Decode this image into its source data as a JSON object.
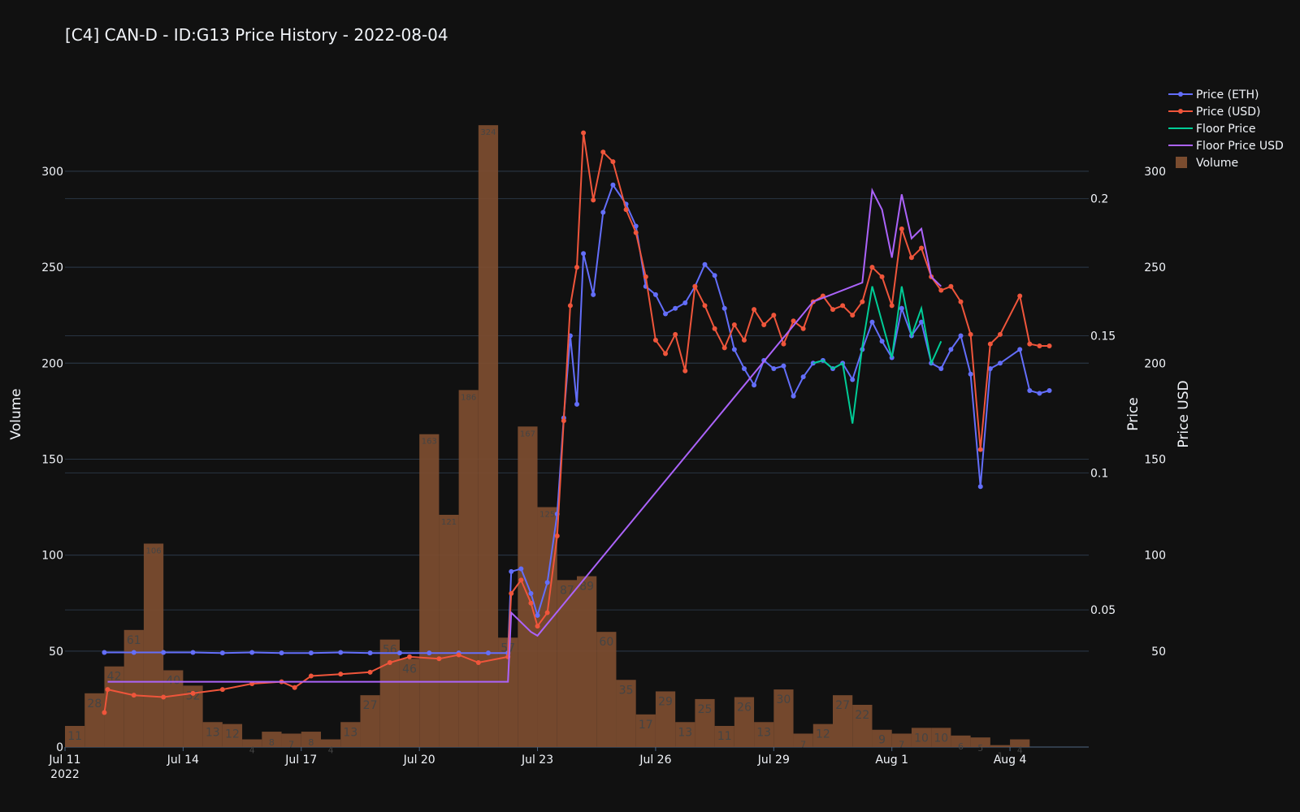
{
  "chart_data": {
    "type": "bar+line",
    "title": "[C4] CAN-D - ID:G13 Price History - 2022-08-04",
    "x_ticks": [
      {
        "date": "2022-07-11",
        "label": "Jul 11",
        "sublabel": "2022"
      },
      {
        "date": "2022-07-14",
        "label": "Jul 14"
      },
      {
        "date": "2022-07-17",
        "label": "Jul 17"
      },
      {
        "date": "2022-07-20",
        "label": "Jul 20"
      },
      {
        "date": "2022-07-23",
        "label": "Jul 23"
      },
      {
        "date": "2022-07-26",
        "label": "Jul 26"
      },
      {
        "date": "2022-07-29",
        "label": "Jul 29"
      },
      {
        "date": "2022-08-01",
        "label": "Aug 1"
      },
      {
        "date": "2022-08-04",
        "label": "Aug 4"
      }
    ],
    "x_range": [
      "2022-07-11",
      "2022-08-06"
    ],
    "axes": {
      "volume": {
        "title": "Volume",
        "range": [
          0,
          330
        ],
        "ticks": [
          0,
          50,
          100,
          150,
          200,
          250,
          300
        ]
      },
      "price": {
        "title": "Price",
        "range": [
          0,
          0.231
        ],
        "ticks": [
          0.05,
          0.1,
          0.15,
          0.2
        ]
      },
      "price_usd": {
        "title": "Price USD",
        "range": [
          0,
          330
        ],
        "ticks": [
          50,
          100,
          150,
          200,
          250,
          300
        ]
      }
    },
    "legend": {
      "position": "top-right",
      "items": [
        {
          "name": "Price (ETH)",
          "symbol": "line-marker",
          "color": "#636efa"
        },
        {
          "name": "Price (USD)",
          "symbol": "line-marker",
          "color": "#ef553b"
        },
        {
          "name": "Floor Price",
          "symbol": "line",
          "color": "#00cc96"
        },
        {
          "name": "Floor Price USD",
          "symbol": "line",
          "color": "#ab63fa"
        },
        {
          "name": "Volume",
          "symbol": "square",
          "color": "#7a4c2f"
        }
      ]
    },
    "volume": [
      {
        "date": "2022-07-11",
        "value": 11
      },
      {
        "date": "2022-07-12",
        "value": 28
      },
      {
        "date": "2022-07-12",
        "value": 42
      },
      {
        "date": "2022-07-13",
        "value": 61
      },
      {
        "date": "2022-07-13",
        "value": 106
      },
      {
        "date": "2022-07-14",
        "value": 40
      },
      {
        "date": "2022-07-14",
        "value": 32
      },
      {
        "date": "2022-07-15",
        "value": 13
      },
      {
        "date": "2022-07-15",
        "value": 12
      },
      {
        "date": "2022-07-16",
        "value": 4
      },
      {
        "date": "2022-07-16",
        "value": 8
      },
      {
        "date": "2022-07-17",
        "value": 7
      },
      {
        "date": "2022-07-17",
        "value": 8
      },
      {
        "date": "2022-07-18",
        "value": 4
      },
      {
        "date": "2022-07-18",
        "value": 13
      },
      {
        "date": "2022-07-19",
        "value": 27
      },
      {
        "date": "2022-07-19",
        "value": 56
      },
      {
        "date": "2022-07-20",
        "value": 46
      },
      {
        "date": "2022-07-20",
        "value": 163
      },
      {
        "date": "2022-07-21",
        "value": 121
      },
      {
        "date": "2022-07-21",
        "value": 186
      },
      {
        "date": "2022-07-22",
        "value": 324
      },
      {
        "date": "2022-07-22",
        "value": 57
      },
      {
        "date": "2022-07-23",
        "value": 167
      },
      {
        "date": "2022-07-23",
        "value": 125
      },
      {
        "date": "2022-07-24",
        "value": 87
      },
      {
        "date": "2022-07-24",
        "value": 89
      },
      {
        "date": "2022-07-25",
        "value": 60
      },
      {
        "date": "2022-07-25",
        "value": 35
      },
      {
        "date": "2022-07-26",
        "value": 17
      },
      {
        "date": "2022-07-26",
        "value": 29
      },
      {
        "date": "2022-07-27",
        "value": 13
      },
      {
        "date": "2022-07-27",
        "value": 25
      },
      {
        "date": "2022-07-28",
        "value": 11
      },
      {
        "date": "2022-07-28",
        "value": 26
      },
      {
        "date": "2022-07-29",
        "value": 13
      },
      {
        "date": "2022-07-29",
        "value": 30
      },
      {
        "date": "2022-07-30",
        "value": 7
      },
      {
        "date": "2022-07-30",
        "value": 12
      },
      {
        "date": "2022-07-31",
        "value": 27
      },
      {
        "date": "2022-07-31",
        "value": 22
      },
      {
        "date": "2022-08-01",
        "value": 9
      },
      {
        "date": "2022-08-01",
        "value": 7
      },
      {
        "date": "2022-08-02",
        "value": 10
      },
      {
        "date": "2022-08-02",
        "value": 10
      },
      {
        "date": "2022-08-03",
        "value": 6
      },
      {
        "date": "2022-08-03",
        "value": 5
      },
      {
        "date": "2022-08-04",
        "value": 1
      },
      {
        "date": "2022-08-04",
        "value": 4
      }
    ],
    "series": [
      {
        "name": "Price (ETH)",
        "axis": "price",
        "color": "#636efa",
        "markers": true,
        "points": [
          [
            "2022-07-12 00:00",
            0.0345
          ],
          [
            "2022-07-12 18:00",
            0.0345
          ],
          [
            "2022-07-13 12:00",
            0.0345
          ],
          [
            "2022-07-14 06:00",
            0.0345
          ],
          [
            "2022-07-15 00:00",
            0.0343
          ],
          [
            "2022-07-15 18:00",
            0.0345
          ],
          [
            "2022-07-16 12:00",
            0.0343
          ],
          [
            "2022-07-17 06:00",
            0.0343
          ],
          [
            "2022-07-18 00:00",
            0.0345
          ],
          [
            "2022-07-18 18:00",
            0.0343
          ],
          [
            "2022-07-19 12:00",
            0.0343
          ],
          [
            "2022-07-20 06:00",
            0.0343
          ],
          [
            "2022-07-21 00:00",
            0.0343
          ],
          [
            "2022-07-21 18:00",
            0.0343
          ],
          [
            "2022-07-22 06:00",
            0.0343
          ],
          [
            "2022-07-22 08:00",
            0.064
          ],
          [
            "2022-07-22 14:00",
            0.065
          ],
          [
            "2022-07-22 20:00",
            0.056
          ],
          [
            "2022-07-23 00:00",
            0.048
          ],
          [
            "2022-07-23 06:00",
            0.06
          ],
          [
            "2022-07-23 12:00",
            0.085
          ],
          [
            "2022-07-23 16:00",
            0.12
          ],
          [
            "2022-07-23 20:00",
            0.15
          ],
          [
            "2022-07-24 00:00",
            0.125
          ],
          [
            "2022-07-24 04:00",
            0.18
          ],
          [
            "2022-07-24 10:00",
            0.165
          ],
          [
            "2022-07-24 16:00",
            0.195
          ],
          [
            "2022-07-24 22:00",
            0.205
          ],
          [
            "2022-07-25 06:00",
            0.198
          ],
          [
            "2022-07-25 12:00",
            0.19
          ],
          [
            "2022-07-25 18:00",
            0.168
          ],
          [
            "2022-07-26 00:00",
            0.165
          ],
          [
            "2022-07-26 06:00",
            0.158
          ],
          [
            "2022-07-26 12:00",
            0.16
          ],
          [
            "2022-07-26 18:00",
            0.162
          ],
          [
            "2022-07-27 00:00",
            0.168
          ],
          [
            "2022-07-27 06:00",
            0.176
          ],
          [
            "2022-07-27 12:00",
            0.172
          ],
          [
            "2022-07-27 18:00",
            0.16
          ],
          [
            "2022-07-28 00:00",
            0.145
          ],
          [
            "2022-07-28 06:00",
            0.138
          ],
          [
            "2022-07-28 12:00",
            0.132
          ],
          [
            "2022-07-28 18:00",
            0.141
          ],
          [
            "2022-07-29 00:00",
            0.138
          ],
          [
            "2022-07-29 06:00",
            0.139
          ],
          [
            "2022-07-29 12:00",
            0.128
          ],
          [
            "2022-07-29 18:00",
            0.135
          ],
          [
            "2022-07-30 00:00",
            0.14
          ],
          [
            "2022-07-30 06:00",
            0.141
          ],
          [
            "2022-07-30 12:00",
            0.138
          ],
          [
            "2022-07-30 18:00",
            0.14
          ],
          [
            "2022-07-31 00:00",
            0.134
          ],
          [
            "2022-07-31 06:00",
            0.145
          ],
          [
            "2022-07-31 12:00",
            0.155
          ],
          [
            "2022-07-31 18:00",
            0.148
          ],
          [
            "2022-08-01 00:00",
            0.142
          ],
          [
            "2022-08-01 06:00",
            0.16
          ],
          [
            "2022-08-01 12:00",
            0.15
          ],
          [
            "2022-08-01 18:00",
            0.155
          ],
          [
            "2022-08-02 00:00",
            0.14
          ],
          [
            "2022-08-02 06:00",
            0.138
          ],
          [
            "2022-08-02 12:00",
            0.145
          ],
          [
            "2022-08-02 18:00",
            0.15
          ],
          [
            "2022-08-03 00:00",
            0.136
          ],
          [
            "2022-08-03 06:00",
            0.095
          ],
          [
            "2022-08-03 12:00",
            0.138
          ],
          [
            "2022-08-03 18:00",
            0.14
          ],
          [
            "2022-08-04 06:00",
            0.145
          ],
          [
            "2022-08-04 12:00",
            0.13
          ],
          [
            "2022-08-04 18:00",
            0.129
          ],
          [
            "2022-08-05 00:00",
            0.13
          ]
        ]
      },
      {
        "name": "Price (USD)",
        "axis": "price_usd",
        "color": "#ef553b",
        "markers": true,
        "points": [
          [
            "2022-07-12 00:00",
            18
          ],
          [
            "2022-07-12 02:00",
            30
          ],
          [
            "2022-07-12 18:00",
            27
          ],
          [
            "2022-07-13 12:00",
            26
          ],
          [
            "2022-07-14 06:00",
            28
          ],
          [
            "2022-07-15 00:00",
            30
          ],
          [
            "2022-07-15 18:00",
            33
          ],
          [
            "2022-07-16 12:00",
            34
          ],
          [
            "2022-07-16 20:00",
            31
          ],
          [
            "2022-07-17 06:00",
            37
          ],
          [
            "2022-07-18 00:00",
            38
          ],
          [
            "2022-07-18 18:00",
            39
          ],
          [
            "2022-07-19 06:00",
            44
          ],
          [
            "2022-07-19 18:00",
            47
          ],
          [
            "2022-07-20 12:00",
            46
          ],
          [
            "2022-07-21 00:00",
            48
          ],
          [
            "2022-07-21 12:00",
            44
          ],
          [
            "2022-07-22 06:00",
            47
          ],
          [
            "2022-07-22 08:00",
            80
          ],
          [
            "2022-07-22 14:00",
            87
          ],
          [
            "2022-07-22 20:00",
            75
          ],
          [
            "2022-07-23 00:00",
            63
          ],
          [
            "2022-07-23 06:00",
            70
          ],
          [
            "2022-07-23 12:00",
            110
          ],
          [
            "2022-07-23 16:00",
            170
          ],
          [
            "2022-07-23 20:00",
            230
          ],
          [
            "2022-07-24 00:00",
            250
          ],
          [
            "2022-07-24 04:00",
            320
          ],
          [
            "2022-07-24 10:00",
            285
          ],
          [
            "2022-07-24 16:00",
            310
          ],
          [
            "2022-07-24 22:00",
            305
          ],
          [
            "2022-07-25 06:00",
            280
          ],
          [
            "2022-07-25 12:00",
            268
          ],
          [
            "2022-07-25 18:00",
            245
          ],
          [
            "2022-07-26 00:00",
            212
          ],
          [
            "2022-07-26 06:00",
            205
          ],
          [
            "2022-07-26 12:00",
            215
          ],
          [
            "2022-07-26 18:00",
            196
          ],
          [
            "2022-07-27 00:00",
            240
          ],
          [
            "2022-07-27 06:00",
            230
          ],
          [
            "2022-07-27 12:00",
            218
          ],
          [
            "2022-07-27 18:00",
            208
          ],
          [
            "2022-07-28 00:00",
            220
          ],
          [
            "2022-07-28 06:00",
            212
          ],
          [
            "2022-07-28 12:00",
            228
          ],
          [
            "2022-07-28 18:00",
            220
          ],
          [
            "2022-07-29 00:00",
            225
          ],
          [
            "2022-07-29 06:00",
            210
          ],
          [
            "2022-07-29 12:00",
            222
          ],
          [
            "2022-07-29 18:00",
            218
          ],
          [
            "2022-07-30 00:00",
            232
          ],
          [
            "2022-07-30 06:00",
            235
          ],
          [
            "2022-07-30 12:00",
            228
          ],
          [
            "2022-07-30 18:00",
            230
          ],
          [
            "2022-07-31 00:00",
            225
          ],
          [
            "2022-07-31 06:00",
            232
          ],
          [
            "2022-07-31 12:00",
            250
          ],
          [
            "2022-07-31 18:00",
            245
          ],
          [
            "2022-08-01 00:00",
            230
          ],
          [
            "2022-08-01 06:00",
            270
          ],
          [
            "2022-08-01 12:00",
            255
          ],
          [
            "2022-08-01 18:00",
            260
          ],
          [
            "2022-08-02 00:00",
            245
          ],
          [
            "2022-08-02 06:00",
            238
          ],
          [
            "2022-08-02 12:00",
            240
          ],
          [
            "2022-08-02 18:00",
            232
          ],
          [
            "2022-08-03 00:00",
            215
          ],
          [
            "2022-08-03 06:00",
            155
          ],
          [
            "2022-08-03 12:00",
            210
          ],
          [
            "2022-08-03 18:00",
            215
          ],
          [
            "2022-08-04 06:00",
            235
          ],
          [
            "2022-08-04 12:00",
            210
          ],
          [
            "2022-08-04 18:00",
            209
          ],
          [
            "2022-08-05 00:00",
            209
          ]
        ]
      },
      {
        "name": "Floor Price",
        "axis": "price",
        "color": "#00cc96",
        "markers": false,
        "points": [
          [
            "2022-07-30 00:00",
            0.14
          ],
          [
            "2022-07-30 06:00",
            0.141
          ],
          [
            "2022-07-30 12:00",
            0.138
          ],
          [
            "2022-07-30 18:00",
            0.14
          ],
          [
            "2022-07-31 00:00",
            0.118
          ],
          [
            "2022-07-31 06:00",
            0.146
          ],
          [
            "2022-07-31 12:00",
            0.168
          ],
          [
            "2022-07-31 18:00",
            0.155
          ],
          [
            "2022-08-01 00:00",
            0.142
          ],
          [
            "2022-08-01 06:00",
            0.168
          ],
          [
            "2022-08-01 12:00",
            0.15
          ],
          [
            "2022-08-01 18:00",
            0.16
          ],
          [
            "2022-08-02 00:00",
            0.14
          ],
          [
            "2022-08-02 06:00",
            0.148
          ]
        ]
      },
      {
        "name": "Floor Price USD",
        "axis": "price_usd",
        "color": "#ab63fa",
        "markers": false,
        "points": [
          [
            "2022-07-12 02:00",
            34
          ],
          [
            "2022-07-14 00:00",
            34
          ],
          [
            "2022-07-16 00:00",
            34
          ],
          [
            "2022-07-18 00:00",
            34
          ],
          [
            "2022-07-20 00:00",
            34
          ],
          [
            "2022-07-22 06:00",
            34
          ],
          [
            "2022-07-22 08:00",
            70
          ],
          [
            "2022-07-22 20:00",
            60
          ],
          [
            "2022-07-23 00:00",
            58
          ],
          [
            "2022-07-30 00:00",
            232
          ],
          [
            "2022-07-31 06:00",
            242
          ],
          [
            "2022-07-31 12:00",
            290
          ],
          [
            "2022-07-31 18:00",
            280
          ],
          [
            "2022-08-01 00:00",
            255
          ],
          [
            "2022-08-01 06:00",
            288
          ],
          [
            "2022-08-01 12:00",
            265
          ],
          [
            "2022-08-01 18:00",
            270
          ],
          [
            "2022-08-02 00:00",
            245
          ],
          [
            "2022-08-02 06:00",
            240
          ]
        ]
      }
    ]
  }
}
